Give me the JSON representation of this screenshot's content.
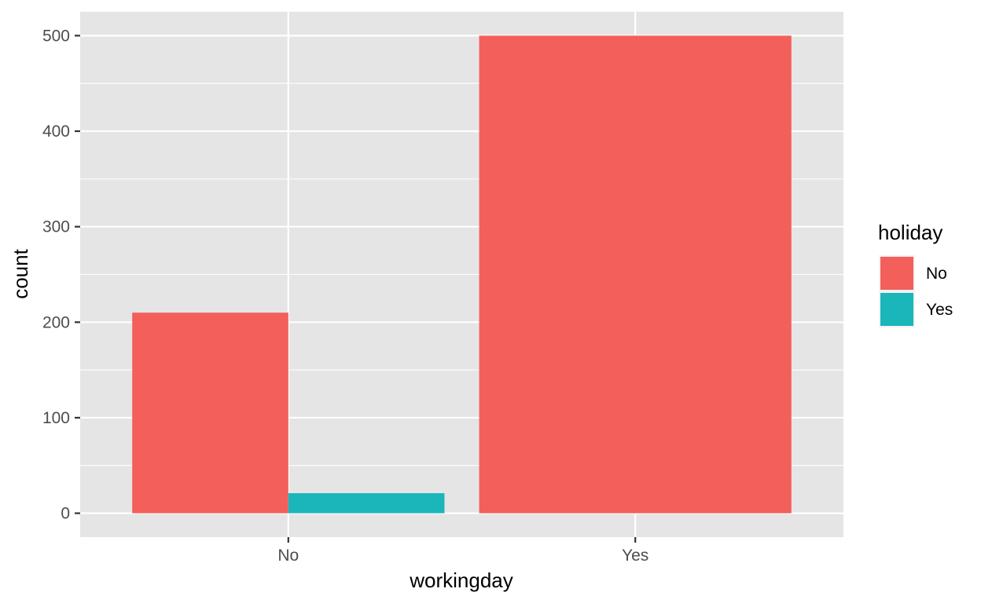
{
  "chart_data": {
    "type": "bar",
    "categories": [
      "No",
      "Yes"
    ],
    "series": [
      {
        "name": "No",
        "values": [
          210,
          500
        ]
      },
      {
        "name": "Yes",
        "values": [
          21,
          null
        ]
      }
    ],
    "xlabel": "workingday",
    "ylabel": "count",
    "ylim": [
      -25,
      525
    ],
    "y_ticks": [
      0,
      100,
      200,
      300,
      400,
      500
    ],
    "legend": {
      "title": "holiday",
      "position": "right",
      "entries": [
        "No",
        "Yes"
      ]
    },
    "grid": true,
    "colors": {
      "No": "#F35F5B",
      "Yes": "#1AB6BA",
      "panel": "#E5E5E5",
      "gridline": "#FFFFFF",
      "axis_text": "#4D4D4D",
      "axis_title": "#000000"
    }
  }
}
